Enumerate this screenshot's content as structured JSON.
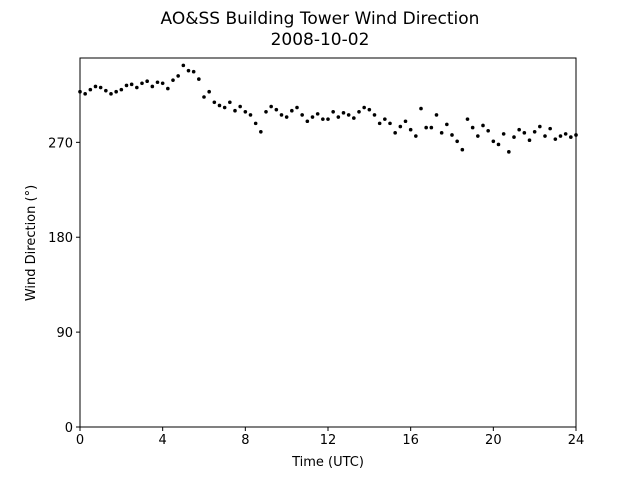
{
  "chart_data": {
    "type": "scatter",
    "title": "AO&SS Building Tower Wind Direction",
    "subtitle": "2008-10-02",
    "x_label": "Time (UTC)",
    "y_label": "Wind Direction (°)",
    "color": "#000000",
    "xlim": [
      0,
      24
    ],
    "xticks": [
      0,
      4,
      8,
      12,
      16,
      20,
      24
    ],
    "ylim": [
      0,
      350
    ],
    "yticks": [
      0,
      90,
      180,
      270
    ],
    "x": [
      0,
      0.25,
      0.5,
      0.75,
      1,
      1.25,
      1.5,
      1.75,
      2,
      2.25,
      2.5,
      2.75,
      3,
      3.25,
      3.5,
      3.75,
      4,
      4.25,
      4.5,
      4.75,
      5,
      5.25,
      5.5,
      5.75,
      6,
      6.25,
      6.5,
      6.75,
      7,
      7.25,
      7.5,
      7.75,
      8,
      8.25,
      8.5,
      8.75,
      9,
      9.25,
      9.5,
      9.75,
      10,
      10.25,
      10.5,
      10.75,
      11,
      11.25,
      11.5,
      11.75,
      12,
      12.25,
      12.5,
      12.75,
      13,
      13.25,
      13.5,
      13.75,
      14,
      14.25,
      14.5,
      14.75,
      15,
      15.25,
      15.5,
      15.75,
      16,
      16.25,
      16.5,
      16.75,
      17,
      17.25,
      17.5,
      17.75,
      18,
      18.25,
      18.5,
      18.75,
      19,
      19.25,
      19.5,
      19.75,
      20,
      20.25,
      20.5,
      20.75,
      21,
      21.25,
      21.5,
      21.75,
      22,
      22.25,
      22.5,
      22.75,
      23,
      23.25,
      23.5,
      23.75,
      24
    ],
    "values": [
      318,
      316,
      320,
      323,
      322,
      319,
      316,
      318,
      320,
      324,
      325,
      322,
      326,
      328,
      323,
      327,
      326,
      321,
      329,
      333,
      343,
      338,
      337,
      330,
      313,
      318,
      308,
      305,
      303,
      308,
      300,
      304,
      299,
      296,
      288,
      280,
      299,
      304,
      301,
      296,
      294,
      300,
      303,
      296,
      290,
      294,
      297,
      292,
      292,
      299,
      294,
      298,
      296,
      293,
      299,
      303,
      301,
      296,
      288,
      292,
      288,
      279,
      285,
      290,
      282,
      276,
      302,
      284,
      284,
      296,
      279,
      287,
      277,
      271,
      263,
      292,
      284,
      276,
      286,
      281,
      271,
      268,
      278,
      261,
      275,
      282,
      279,
      272,
      280,
      285,
      276,
      283,
      273,
      276,
      278,
      275,
      277
    ]
  }
}
